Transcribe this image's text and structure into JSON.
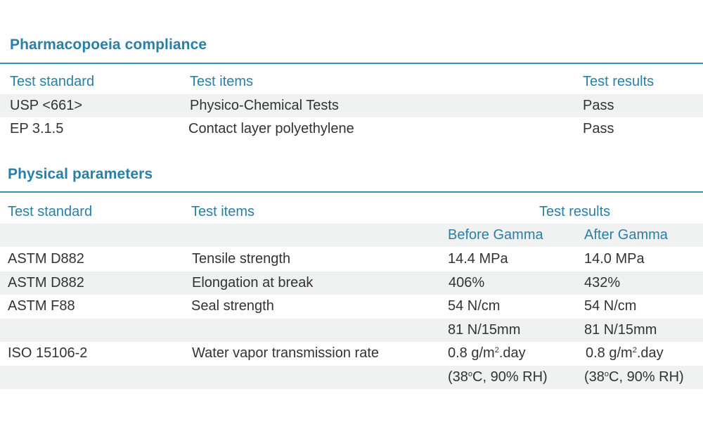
{
  "pharmacopoeia": {
    "title": "Pharmacopoeia compliance",
    "header": {
      "standard": "Test standard",
      "items": "Test items",
      "results": "Test results"
    },
    "rows": [
      {
        "standard": "USP <661>",
        "item": "Physico-Chemical Tests",
        "result": "Pass"
      },
      {
        "standard": "EP 3.1.5",
        "item": "Contact layer polyethylene",
        "result": "Pass"
      }
    ]
  },
  "physical": {
    "title": "Physical parameters",
    "header": {
      "standard": "Test standard",
      "items": "Test items",
      "results": "Test results"
    },
    "subheader": {
      "before": "Before Gamma",
      "after": "After Gamma"
    },
    "rows": [
      {
        "standard": "ASTM D882",
        "item": "Tensile strength",
        "before": "14.4 MPa",
        "after": "14.0 MPa"
      },
      {
        "standard": "ASTM D882",
        "item": "Elongation at break",
        "before": "406%",
        "after": "432%"
      },
      {
        "standard": "ASTM F88",
        "item": "Seal strength",
        "before": "54 N/cm",
        "after": "54 N/cm"
      },
      {
        "standard": "",
        "item": "",
        "before": "81 N/15mm",
        "after": "81 N/15mm"
      },
      {
        "standard": "ISO 15106-2",
        "item": "Water vapor transmission rate",
        "before_pre": "0.8 g/m",
        "before_sup": "2",
        "before_post": ".day",
        "after_pre": "0.8 g/m",
        "after_sup": "2",
        "after_post": ".day"
      },
      {
        "standard": "",
        "item": "",
        "before_pre": "(38",
        "before_sup": "o",
        "before_post": "C, 90% RH)",
        "after_pre": "(38",
        "after_sup": "o",
        "after_post": "C, 90% RH)"
      }
    ]
  }
}
